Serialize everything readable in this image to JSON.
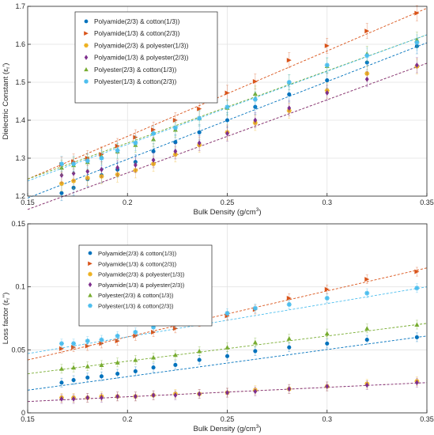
{
  "chart_data": [
    {
      "type": "scatter",
      "xlabel": "Bulk Density (g/cm",
      "xlabel_sup": "3",
      "xlabel_end": ")",
      "ylabel": "Dielectric Constant (ε",
      "ylabel_sub": "r",
      "ylabel_end": "')",
      "xlim": [
        0.15,
        0.35
      ],
      "ylim": [
        1.2,
        1.7
      ],
      "xticks": [
        "0.15",
        "0.2",
        "0.25",
        "0.3",
        "0.35"
      ],
      "yticks": [
        "1.2",
        "1.3",
        "1.4",
        "1.5",
        "1.6",
        "1.7"
      ],
      "grid": true,
      "legend_position": "top-left",
      "x": [
        0.167,
        0.173,
        0.18,
        0.187,
        0.195,
        0.204,
        0.213,
        0.224,
        0.236,
        0.25,
        0.264,
        0.281,
        0.3,
        0.32,
        0.345
      ],
      "series": [
        {
          "name": "Polyamide(2/3) & cotton(1/3))",
          "color": "#0072BD",
          "marker": "circle",
          "values": [
            1.208,
            1.222,
            1.245,
            1.255,
            1.27,
            1.29,
            1.318,
            1.342,
            1.368,
            1.4,
            1.435,
            1.468,
            1.505,
            1.552,
            1.595
          ],
          "fit": [
            1.195,
            1.604
          ]
        },
        {
          "name": "Polyamide(1/3) & cotton(2/3))",
          "color": "#D95319",
          "marker": "triangle-right",
          "values": [
            1.283,
            1.291,
            1.3,
            1.31,
            1.332,
            1.355,
            1.375,
            1.4,
            1.43,
            1.472,
            1.502,
            1.558,
            1.596,
            1.635,
            1.682
          ],
          "fit": [
            1.245,
            1.695
          ]
        },
        {
          "name": "Polyamide(2/3) & polyester(1/3))",
          "color": "#EDB120",
          "marker": "star",
          "values": [
            1.233,
            1.24,
            1.248,
            1.252,
            1.257,
            1.268,
            1.285,
            1.31,
            1.335,
            1.368,
            1.393,
            1.425,
            1.478,
            1.523,
            1.542
          ],
          "fit": [
            1.165,
            1.55
          ]
        },
        {
          "name": "Polyamide(1/3) & polyester(2/3))",
          "color": "#7E2F8E",
          "marker": "diamond",
          "values": [
            1.255,
            1.26,
            1.265,
            1.27,
            1.275,
            1.282,
            1.295,
            1.318,
            1.34,
            1.365,
            1.4,
            1.432,
            1.472,
            1.508,
            1.545
          ],
          "fit": [
            1.165,
            1.55
          ]
        },
        {
          "name": "Polyester(2/3) & cotton(1/3))",
          "color": "#77AC30",
          "marker": "triangle-up",
          "values": [
            1.275,
            1.282,
            1.29,
            1.305,
            1.318,
            1.335,
            1.35,
            1.375,
            1.405,
            1.433,
            1.47,
            1.5,
            1.543,
            1.575,
            1.612
          ],
          "fit": [
            1.245,
            1.625
          ]
        },
        {
          "name": "Polyester(1/3) & cotton(2/3))",
          "color": "#4DBEEE",
          "marker": "star",
          "values": [
            1.285,
            1.285,
            1.293,
            1.3,
            1.32,
            1.34,
            1.365,
            1.38,
            1.405,
            1.435,
            1.455,
            1.5,
            1.545,
            1.57,
            1.605
          ],
          "fit": [
            1.24,
            1.625
          ]
        }
      ]
    },
    {
      "type": "scatter",
      "xlabel": "Bulk Density (g/cm",
      "xlabel_sup": "3",
      "xlabel_end": ")",
      "ylabel": "Loss factor (ε",
      "ylabel_sub": "r",
      "ylabel_end": "'')",
      "xlim": [
        0.15,
        0.35
      ],
      "ylim": [
        0,
        0.15
      ],
      "xticks": [
        "0.15",
        "0.2",
        "0.25",
        "0.3",
        "0.35"
      ],
      "yticks": [
        "0",
        "0.05",
        "0.1",
        "0.15"
      ],
      "grid": true,
      "legend_position": "top-left",
      "x": [
        0.167,
        0.173,
        0.18,
        0.187,
        0.195,
        0.204,
        0.213,
        0.224,
        0.236,
        0.25,
        0.264,
        0.281,
        0.3,
        0.32,
        0.345
      ],
      "series": [
        {
          "name": "Polyamide(2/3) & cotton(1/3))",
          "color": "#0072BD",
          "marker": "circle",
          "values": [
            0.024,
            0.026,
            0.028,
            0.029,
            0.031,
            0.033,
            0.036,
            0.038,
            0.042,
            0.045,
            0.049,
            0.052,
            0.055,
            0.058,
            0.06
          ],
          "fit": [
            0.018,
            0.061
          ]
        },
        {
          "name": "Polyamide(1/3) & cotton(2/3))",
          "color": "#D95319",
          "marker": "triangle-right",
          "values": [
            0.051,
            0.052,
            0.053,
            0.055,
            0.057,
            0.061,
            0.064,
            0.067,
            0.072,
            0.077,
            0.082,
            0.091,
            0.098,
            0.106,
            0.112
          ],
          "fit": [
            0.042,
            0.115
          ]
        },
        {
          "name": "Polyamide(2/3) & polyester(1/3))",
          "color": "#EDB120",
          "marker": "star",
          "values": [
            0.012,
            0.012,
            0.012,
            0.013,
            0.013,
            0.013,
            0.014,
            0.015,
            0.015,
            0.016,
            0.018,
            0.019,
            0.021,
            0.023,
            0.025
          ],
          "fit": [
            0.009,
            0.024
          ]
        },
        {
          "name": "Polyamide(1/3) & polyester(2/3))",
          "color": "#7E2F8E",
          "marker": "diamond",
          "values": [
            0.011,
            0.011,
            0.012,
            0.012,
            0.013,
            0.013,
            0.014,
            0.014,
            0.015,
            0.016,
            0.017,
            0.019,
            0.021,
            0.022,
            0.024
          ],
          "fit": [
            0.009,
            0.024
          ]
        },
        {
          "name": "Polyester(2/3) & cotton(1/3))",
          "color": "#77AC30",
          "marker": "triangle-up",
          "values": [
            0.035,
            0.036,
            0.037,
            0.038,
            0.04,
            0.042,
            0.044,
            0.046,
            0.049,
            0.052,
            0.056,
            0.059,
            0.063,
            0.067,
            0.07
          ],
          "fit": [
            0.031,
            0.071
          ]
        },
        {
          "name": "Polyester(1/3) & cotton(2/3))",
          "color": "#4DBEEE",
          "marker": "star",
          "values": [
            0.055,
            0.055,
            0.057,
            0.058,
            0.061,
            0.064,
            0.068,
            0.071,
            0.075,
            0.079,
            0.083,
            0.086,
            0.091,
            0.095,
            0.099
          ],
          "fit": [
            0.047,
            0.1
          ]
        }
      ]
    }
  ]
}
